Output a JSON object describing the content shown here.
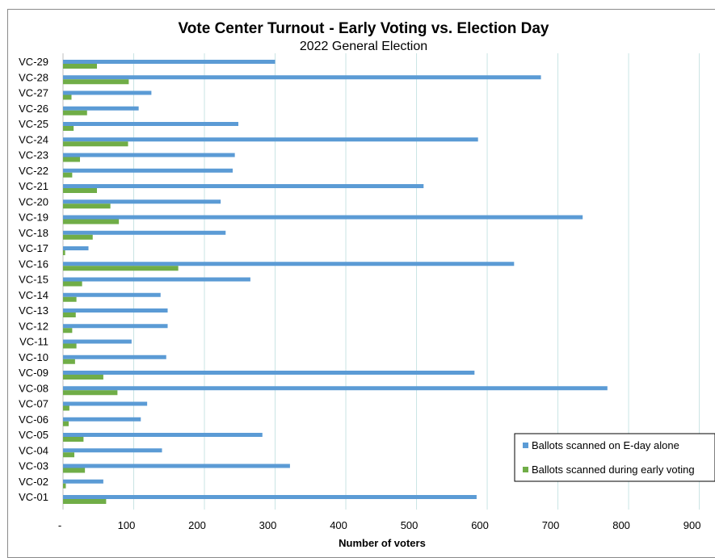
{
  "chart_data": {
    "type": "bar",
    "orientation": "horizontal",
    "title": "Vote Center Turnout",
    "title_emphasis": "- Early Voting vs. Election Day",
    "subtitle": "2022 General Election",
    "xlabel": "Number of voters",
    "ylabel": "",
    "xlim": [
      0,
      900
    ],
    "x_ticks": [
      "-",
      "100",
      "200",
      "300",
      "400",
      "500",
      "600",
      "700",
      "800",
      "900"
    ],
    "grid": "vertical",
    "legend_position": "bottom-right",
    "categories": [
      "VC-29",
      "VC-28",
      "VC-27",
      "VC-26",
      "VC-25",
      "VC-24",
      "VC-23",
      "VC-22",
      "VC-21",
      "VC-20",
      "VC-19",
      "VC-18",
      "VC-17",
      "VC-16",
      "VC-15",
      "VC-14",
      "VC-13",
      "VC-12",
      "VC-11",
      "VC-10",
      "VC-09",
      "VC-08",
      "VC-07",
      "VC-06",
      "VC-05",
      "VC-04",
      "VC-03",
      "VC-02",
      "VC-01"
    ],
    "series": [
      {
        "name": "Ballots scanned on E-day alone",
        "color": "#5b9bd5",
        "values": [
          300,
          676,
          125,
          107,
          248,
          587,
          243,
          240,
          510,
          223,
          735,
          230,
          36,
          638,
          265,
          138,
          148,
          148,
          97,
          146,
          582,
          770,
          119,
          110,
          282,
          140,
          321,
          57,
          585
        ]
      },
      {
        "name": "Ballots scanned during early voting",
        "color": "#70ad47",
        "values": [
          48,
          93,
          12,
          34,
          15,
          92,
          24,
          13,
          48,
          67,
          79,
          42,
          3,
          163,
          27,
          19,
          18,
          13,
          19,
          17,
          57,
          77,
          9,
          8,
          29,
          16,
          31,
          4,
          61
        ]
      }
    ]
  }
}
